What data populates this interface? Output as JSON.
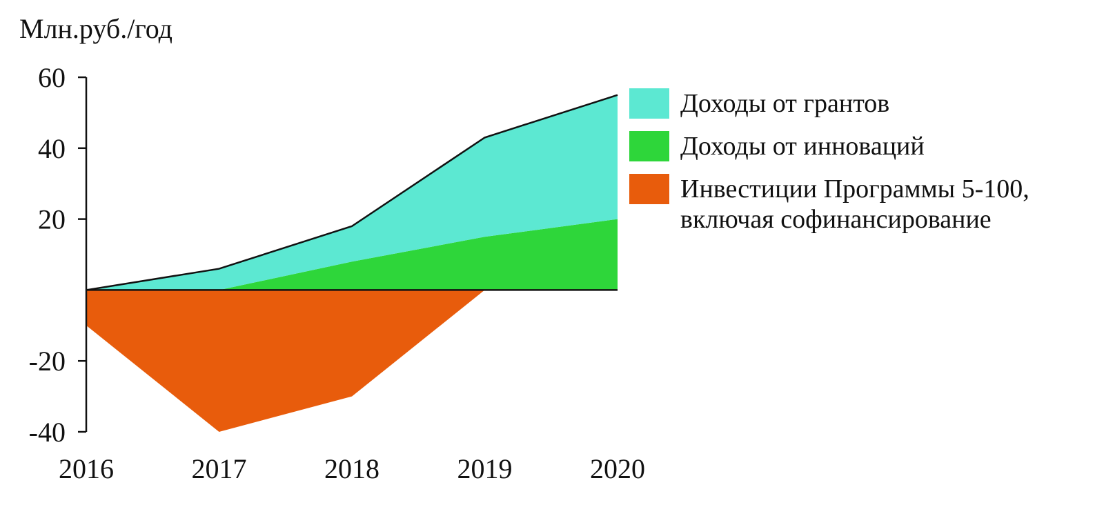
{
  "chart_data": {
    "type": "area",
    "y_label": "Млн.руб./год",
    "categories": [
      "2016",
      "2017",
      "2018",
      "2019",
      "2020"
    ],
    "series": [
      {
        "name": "Доходы от грантов",
        "color": "#5ce8d2",
        "values": [
          0,
          6,
          10,
          28,
          35
        ]
      },
      {
        "name": "Доходы от инноваций",
        "color": "#2ed63a",
        "values": [
          0,
          0,
          8,
          15,
          20
        ]
      },
      {
        "name": "Инвестиции Программы 5-100, включая софинансирование",
        "color": "#e85c0c",
        "values": [
          -10,
          -40,
          -30,
          0,
          0
        ]
      }
    ],
    "ylim": [
      -40,
      60
    ],
    "yticks": [
      -40,
      -20,
      20,
      40,
      60
    ],
    "stacked": true,
    "legend": "right"
  }
}
